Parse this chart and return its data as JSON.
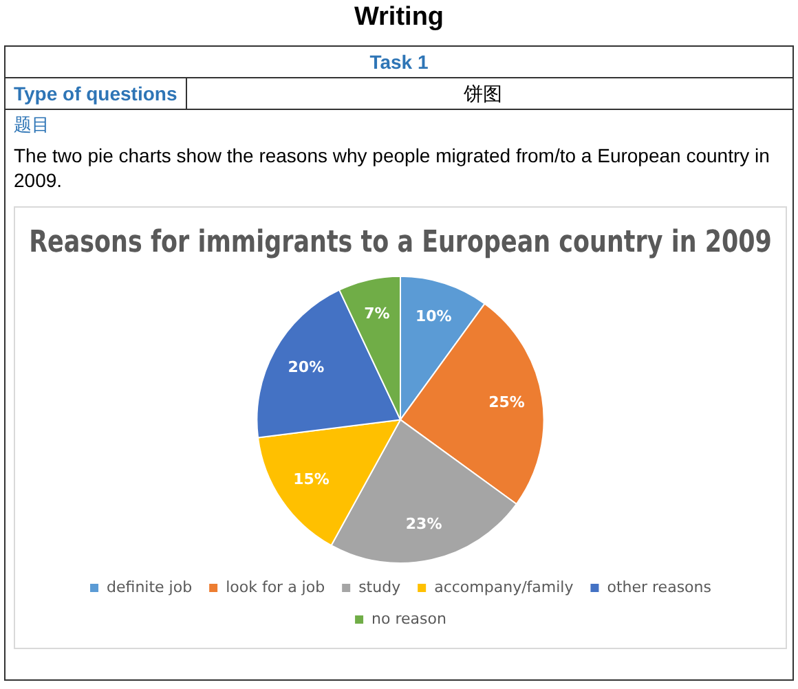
{
  "chart_data": {
    "type": "pie",
    "title": "Reasons for immigrants to a European country in 2009",
    "categories": [
      "definite job",
      "look for a job",
      "study",
      "accompany/family",
      "other reasons",
      "no reason"
    ],
    "values": [
      10,
      25,
      23,
      15,
      20,
      7
    ],
    "colors": [
      "#5b9bd5",
      "#ed7d31",
      "#a5a5a5",
      "#ffc000",
      "#4472c4",
      "#70ad47"
    ],
    "value_labels": [
      "10%",
      "25%",
      "23%",
      "15%",
      "20%",
      "7%"
    ],
    "legend": "bottom",
    "annotations": [
      "Writing",
      "Task 1",
      "Type of questions",
      "饼图",
      "题目",
      "The two pie charts show the reasons why people migrated from/to a European country in 2009."
    ]
  }
}
